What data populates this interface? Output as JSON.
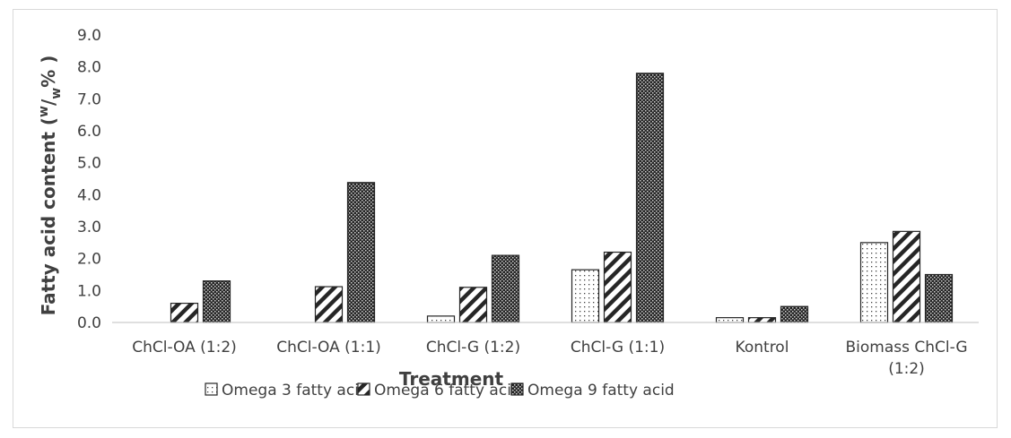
{
  "chart_data": {
    "type": "bar",
    "ylabel_prefix": "Fatty acid content (",
    "ylabel_sup": "w",
    "ylabel_slash": "/",
    "ylabel_sub": "w",
    "ylabel_suffix": "% )",
    "xlabel": "Treatment",
    "ylim": [
      0,
      9
    ],
    "yticks": [
      "0.0",
      "1.0",
      "2.0",
      "3.0",
      "4.0",
      "5.0",
      "6.0",
      "7.0",
      "8.0",
      "9.0"
    ],
    "categories": [
      [
        "ChCl-OA (1:2)"
      ],
      [
        "ChCl-OA (1:1)"
      ],
      [
        "ChCl-G (1:2)"
      ],
      [
        "ChCl-G (1:1)"
      ],
      [
        "Kontrol"
      ],
      [
        "Biomass ChCl-G",
        "(1:2)"
      ]
    ],
    "series": [
      {
        "name": "Omega 3 fatty acid",
        "pattern": "dots",
        "values": [
          0,
          0,
          0.2,
          1.65,
          0.15,
          2.5
        ]
      },
      {
        "name": "Omega 6 fatty acid",
        "pattern": "diagonal",
        "values": [
          0.6,
          1.12,
          1.1,
          2.2,
          0.15,
          2.85
        ]
      },
      {
        "name": "Omega 9 fatty acid",
        "pattern": "checker",
        "values": [
          1.3,
          4.38,
          2.1,
          7.8,
          0.5,
          1.5
        ]
      }
    ],
    "grid": false,
    "legend_position": "bottom"
  }
}
